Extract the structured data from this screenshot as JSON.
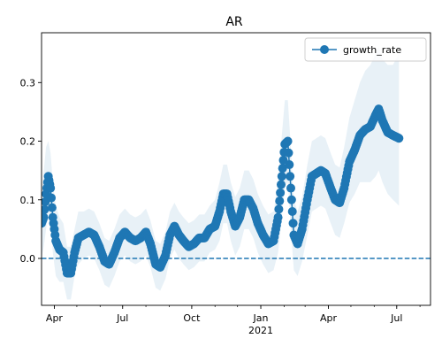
{
  "chart_data": {
    "type": "line",
    "title": "AR",
    "xlabel": "",
    "ylabel": "",
    "x_start": "2020-03-15",
    "x_end": "2021-08-15",
    "ylim": [
      -0.08,
      0.385
    ],
    "y_ticks": [
      0.0,
      0.1,
      0.2,
      0.3
    ],
    "y_tick_labels": [
      "0.0",
      "0.1",
      "0.2",
      "0.3"
    ],
    "x_major_ticks": [
      {
        "date": "2020-04-01",
        "label": "Apr"
      },
      {
        "date": "2020-07-01",
        "label": "Jul"
      },
      {
        "date": "2020-10-01",
        "label": "Oct"
      },
      {
        "date": "2021-01-01",
        "label": "Jan"
      },
      {
        "date": "2021-04-01",
        "label": "Apr"
      },
      {
        "date": "2021-07-01",
        "label": "Jul"
      }
    ],
    "x_year_label": {
      "date": "2021-01-01",
      "label": "2021"
    },
    "grid": false,
    "legend": {
      "position": "top-right"
    },
    "reference_line": {
      "y": 0.0,
      "style": "dashed"
    },
    "series": [
      {
        "name": "growth_rate",
        "color": "#1f77b4",
        "band_color": "#1f77b4",
        "points": [
          {
            "x": "2020-03-15",
            "y": 0.06,
            "lo": 0.0,
            "hi": 0.12
          },
          {
            "x": "2020-03-18",
            "y": 0.07,
            "lo": 0.02,
            "hi": 0.15
          },
          {
            "x": "2020-03-21",
            "y": 0.11,
            "lo": 0.05,
            "hi": 0.19
          },
          {
            "x": "2020-03-24",
            "y": 0.14,
            "lo": 0.08,
            "hi": 0.2
          },
          {
            "x": "2020-03-27",
            "y": 0.12,
            "lo": 0.06,
            "hi": 0.18
          },
          {
            "x": "2020-03-30",
            "y": 0.07,
            "lo": 0.01,
            "hi": 0.13
          },
          {
            "x": "2020-04-03",
            "y": 0.03,
            "lo": -0.03,
            "hi": 0.09
          },
          {
            "x": "2020-04-08",
            "y": 0.015,
            "lo": -0.04,
            "hi": 0.07
          },
          {
            "x": "2020-04-13",
            "y": 0.01,
            "lo": -0.04,
            "hi": 0.06
          },
          {
            "x": "2020-04-18",
            "y": -0.025,
            "lo": -0.07,
            "hi": 0.02
          },
          {
            "x": "2020-04-23",
            "y": -0.025,
            "lo": -0.07,
            "hi": 0.02
          },
          {
            "x": "2020-04-28",
            "y": 0.01,
            "lo": -0.03,
            "hi": 0.05
          },
          {
            "x": "2020-05-03",
            "y": 0.035,
            "lo": -0.01,
            "hi": 0.08
          },
          {
            "x": "2020-05-10",
            "y": 0.04,
            "lo": 0.0,
            "hi": 0.08
          },
          {
            "x": "2020-05-17",
            "y": 0.045,
            "lo": 0.005,
            "hi": 0.085
          },
          {
            "x": "2020-05-24",
            "y": 0.04,
            "lo": 0.0,
            "hi": 0.08
          },
          {
            "x": "2020-05-31",
            "y": 0.02,
            "lo": -0.02,
            "hi": 0.06
          },
          {
            "x": "2020-06-07",
            "y": -0.005,
            "lo": -0.045,
            "hi": 0.035
          },
          {
            "x": "2020-06-13",
            "y": -0.01,
            "lo": -0.05,
            "hi": 0.03
          },
          {
            "x": "2020-06-20",
            "y": 0.01,
            "lo": -0.03,
            "hi": 0.05
          },
          {
            "x": "2020-06-27",
            "y": 0.035,
            "lo": -0.005,
            "hi": 0.075
          },
          {
            "x": "2020-07-04",
            "y": 0.045,
            "lo": 0.005,
            "hi": 0.085
          },
          {
            "x": "2020-07-11",
            "y": 0.035,
            "lo": -0.005,
            "hi": 0.075
          },
          {
            "x": "2020-07-18",
            "y": 0.03,
            "lo": -0.01,
            "hi": 0.07
          },
          {
            "x": "2020-07-25",
            "y": 0.035,
            "lo": -0.005,
            "hi": 0.075
          },
          {
            "x": "2020-08-01",
            "y": 0.045,
            "lo": 0.005,
            "hi": 0.085
          },
          {
            "x": "2020-08-07",
            "y": 0.025,
            "lo": -0.015,
            "hi": 0.065
          },
          {
            "x": "2020-08-14",
            "y": -0.01,
            "lo": -0.05,
            "hi": 0.03
          },
          {
            "x": "2020-08-20",
            "y": -0.015,
            "lo": -0.055,
            "hi": 0.025
          },
          {
            "x": "2020-08-27",
            "y": 0.005,
            "lo": -0.035,
            "hi": 0.045
          },
          {
            "x": "2020-09-02",
            "y": 0.04,
            "lo": 0.0,
            "hi": 0.08
          },
          {
            "x": "2020-09-08",
            "y": 0.055,
            "lo": 0.015,
            "hi": 0.095
          },
          {
            "x": "2020-09-14",
            "y": 0.04,
            "lo": 0.0,
            "hi": 0.08
          },
          {
            "x": "2020-09-20",
            "y": 0.03,
            "lo": -0.01,
            "hi": 0.07
          },
          {
            "x": "2020-09-27",
            "y": 0.02,
            "lo": -0.02,
            "hi": 0.06
          },
          {
            "x": "2020-10-04",
            "y": 0.025,
            "lo": -0.015,
            "hi": 0.065
          },
          {
            "x": "2020-10-11",
            "y": 0.035,
            "lo": -0.005,
            "hi": 0.075
          },
          {
            "x": "2020-10-18",
            "y": 0.035,
            "lo": -0.005,
            "hi": 0.075
          },
          {
            "x": "2020-10-25",
            "y": 0.05,
            "lo": 0.01,
            "hi": 0.09
          },
          {
            "x": "2020-11-01",
            "y": 0.055,
            "lo": 0.015,
            "hi": 0.1
          },
          {
            "x": "2020-11-07",
            "y": 0.08,
            "lo": 0.03,
            "hi": 0.13
          },
          {
            "x": "2020-11-12",
            "y": 0.11,
            "lo": 0.06,
            "hi": 0.16
          },
          {
            "x": "2020-11-17",
            "y": 0.11,
            "lo": 0.06,
            "hi": 0.16
          },
          {
            "x": "2020-11-22",
            "y": 0.08,
            "lo": 0.03,
            "hi": 0.13
          },
          {
            "x": "2020-11-28",
            "y": 0.055,
            "lo": 0.005,
            "hi": 0.105
          },
          {
            "x": "2020-12-04",
            "y": 0.07,
            "lo": 0.02,
            "hi": 0.12
          },
          {
            "x": "2020-12-10",
            "y": 0.1,
            "lo": 0.05,
            "hi": 0.15
          },
          {
            "x": "2020-12-16",
            "y": 0.1,
            "lo": 0.05,
            "hi": 0.15
          },
          {
            "x": "2020-12-22",
            "y": 0.085,
            "lo": 0.035,
            "hi": 0.135
          },
          {
            "x": "2020-12-28",
            "y": 0.06,
            "lo": 0.01,
            "hi": 0.11
          },
          {
            "x": "2021-01-04",
            "y": 0.04,
            "lo": -0.01,
            "hi": 0.09
          },
          {
            "x": "2021-01-11",
            "y": 0.025,
            "lo": -0.025,
            "hi": 0.075
          },
          {
            "x": "2021-01-18",
            "y": 0.03,
            "lo": -0.02,
            "hi": 0.08
          },
          {
            "x": "2021-01-24",
            "y": 0.07,
            "lo": 0.01,
            "hi": 0.13
          },
          {
            "x": "2021-01-29",
            "y": 0.14,
            "lo": 0.07,
            "hi": 0.21
          },
          {
            "x": "2021-02-02",
            "y": 0.195,
            "lo": 0.12,
            "hi": 0.27
          },
          {
            "x": "2021-02-06",
            "y": 0.2,
            "lo": 0.13,
            "hi": 0.27
          },
          {
            "x": "2021-02-10",
            "y": 0.12,
            "lo": 0.05,
            "hi": 0.19
          },
          {
            "x": "2021-02-14",
            "y": 0.04,
            "lo": -0.02,
            "hi": 0.1
          },
          {
            "x": "2021-02-19",
            "y": 0.025,
            "lo": -0.03,
            "hi": 0.08
          },
          {
            "x": "2021-02-25",
            "y": 0.05,
            "lo": -0.005,
            "hi": 0.105
          },
          {
            "x": "2021-03-04",
            "y": 0.1,
            "lo": 0.04,
            "hi": 0.16
          },
          {
            "x": "2021-03-10",
            "y": 0.14,
            "lo": 0.08,
            "hi": 0.2
          },
          {
            "x": "2021-03-16",
            "y": 0.145,
            "lo": 0.085,
            "hi": 0.205
          },
          {
            "x": "2021-03-22",
            "y": 0.15,
            "lo": 0.09,
            "hi": 0.21
          },
          {
            "x": "2021-03-28",
            "y": 0.145,
            "lo": 0.085,
            "hi": 0.205
          },
          {
            "x": "2021-04-04",
            "y": 0.12,
            "lo": 0.06,
            "hi": 0.18
          },
          {
            "x": "2021-04-10",
            "y": 0.1,
            "lo": 0.04,
            "hi": 0.16
          },
          {
            "x": "2021-04-16",
            "y": 0.095,
            "lo": 0.035,
            "hi": 0.155
          },
          {
            "x": "2021-04-22",
            "y": 0.12,
            "lo": 0.06,
            "hi": 0.19
          },
          {
            "x": "2021-04-29",
            "y": 0.165,
            "lo": 0.095,
            "hi": 0.24
          },
          {
            "x": "2021-05-06",
            "y": 0.185,
            "lo": 0.11,
            "hi": 0.27
          },
          {
            "x": "2021-05-13",
            "y": 0.21,
            "lo": 0.13,
            "hi": 0.3
          },
          {
            "x": "2021-05-20",
            "y": 0.22,
            "lo": 0.13,
            "hi": 0.32
          },
          {
            "x": "2021-05-27",
            "y": 0.225,
            "lo": 0.13,
            "hi": 0.33
          },
          {
            "x": "2021-06-03",
            "y": 0.245,
            "lo": 0.14,
            "hi": 0.35
          },
          {
            "x": "2021-06-07",
            "y": 0.255,
            "lo": 0.15,
            "hi": 0.36
          },
          {
            "x": "2021-06-12",
            "y": 0.235,
            "lo": 0.13,
            "hi": 0.34
          },
          {
            "x": "2021-06-19",
            "y": 0.215,
            "lo": 0.11,
            "hi": 0.33
          },
          {
            "x": "2021-06-26",
            "y": 0.21,
            "lo": 0.1,
            "hi": 0.33
          },
          {
            "x": "2021-07-04",
            "y": 0.205,
            "lo": 0.09,
            "hi": 0.35
          }
        ]
      }
    ]
  }
}
